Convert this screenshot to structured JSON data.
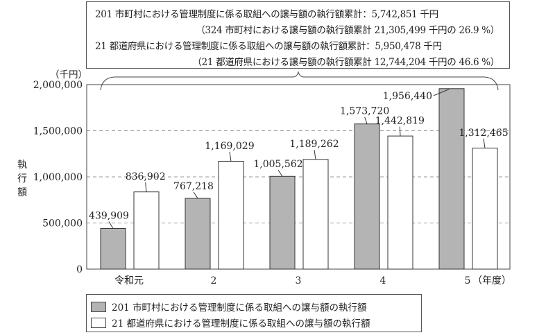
{
  "summary": {
    "line1": "201 市町村における管理制度に係る取組への譲与額の執行額累計：5,742,851 千円",
    "line2": "（324 市町村における譲与額の執行額累計 21,305,499 千円の 26.9 %）",
    "line3": "21 都道府県における管理制度に係る取組への譲与額の執行額累計：5,950,478 千円",
    "line4": "（21 都道府県における譲与額の執行額累計 12,744,204 千円の 46.6 %）"
  },
  "axis": {
    "unit": "（千円）",
    "y_title": "執行額",
    "x_unit": "（年度）"
  },
  "legend": {
    "municipal": "201 市町村における管理制度に係る取組への譲与額の執行額",
    "prefectural": "21 都道府県における管理制度に係る取組への譲与額の執行額"
  },
  "colors": {
    "municipal": "#b4b4b4",
    "prefectural": "#ffffff",
    "axis": "#444444",
    "grid": "#999999"
  },
  "chart_data": {
    "type": "bar",
    "title": "",
    "xlabel": "（年度）",
    "ylabel": "執行額（千円）",
    "categories": [
      "令和元",
      "2",
      "3",
      "4",
      "5"
    ],
    "series": [
      {
        "name": "201 市町村における管理制度に係る取組への譲与額の執行額",
        "values": [
          439909,
          767218,
          1005562,
          1573720,
          1956440
        ],
        "labels": [
          "439,909",
          "767,218",
          "1,005,562",
          "1,573,720",
          "1,956,440"
        ]
      },
      {
        "name": "21 都道府県における管理制度に係る取組への譲与額の執行額",
        "values": [
          836902,
          1169029,
          1189262,
          1442819,
          1312465
        ],
        "labels": [
          "836,902",
          "1,169,029",
          "1,189,262",
          "1,442,819",
          "1,312,465"
        ]
      }
    ],
    "yticks": [
      "0",
      "500,000",
      "1,000,000",
      "1,500,000",
      "2,000,000"
    ],
    "ylim": [
      0,
      2000000
    ],
    "grid": true,
    "legend_position": "bottom"
  }
}
